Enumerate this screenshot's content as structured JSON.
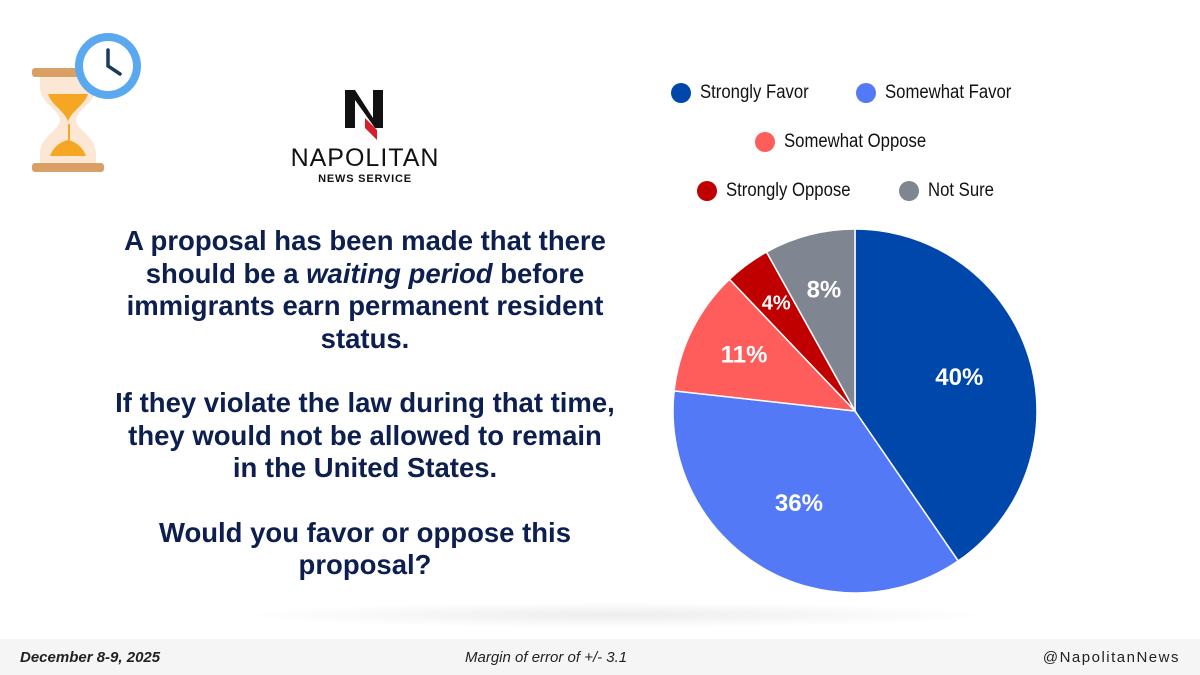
{
  "logo": {
    "name": "NAPOLITAN",
    "subtitle": "NEWS SERVICE"
  },
  "question": {
    "p1_before": "A proposal has been made that there should be a ",
    "p1_emphasis": "waiting period",
    "p1_after": " before immigrants earn permanent resident status.",
    "p2": "If they violate the law during that time, they would not be allowed to remain in the United States.",
    "p3": "Would you favor or oppose this proposal?"
  },
  "chart_data": {
    "type": "pie",
    "title": "",
    "slices": [
      {
        "label": "Strongly Favor",
        "value": 40,
        "display": "40%",
        "color": "#0047ab"
      },
      {
        "label": "Somewhat Favor",
        "value": 36,
        "display": "36%",
        "color": "#5479f7"
      },
      {
        "label": "Somewhat Oppose",
        "value": 11,
        "display": "11%",
        "color": "#ff5c5c"
      },
      {
        "label": "Strongly Oppose",
        "value": 4,
        "display": "4%",
        "color": "#c00000"
      },
      {
        "label": "Not Sure",
        "value": 8,
        "display": "8%",
        "color": "#7f8591"
      }
    ],
    "legend_position": "top"
  },
  "footer": {
    "date": "December 8-9, 2025",
    "margin_of_error": "Margin of error of +/- 3.1",
    "handle": "@NapolitanNews"
  }
}
